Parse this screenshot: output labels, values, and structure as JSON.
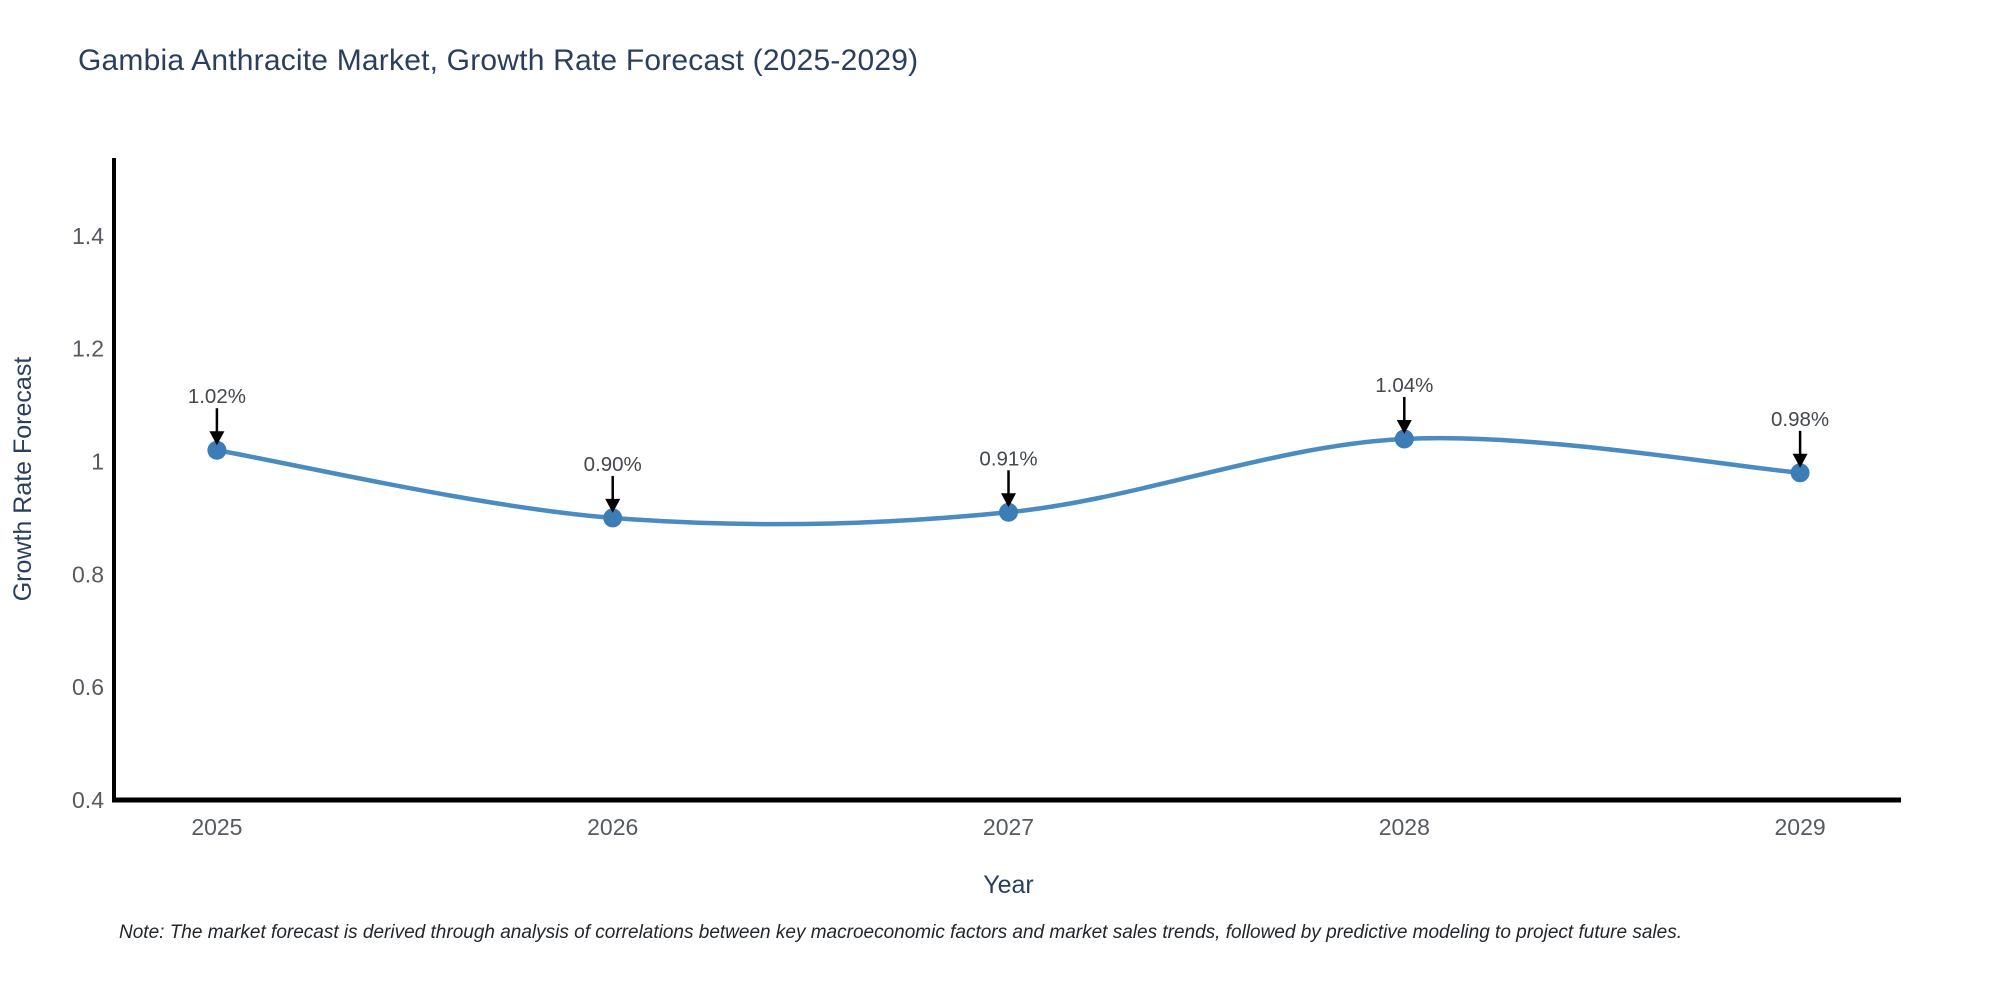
{
  "title": "Gambia Anthracite Market, Growth Rate Forecast (2025-2029)",
  "note": "Note: The market forecast is derived through analysis of correlations between key macroeconomic factors and market sales trends, followed by predictive modeling to project future sales.",
  "chart_data": {
    "type": "line",
    "title": "Gambia Anthracite Market, Growth Rate Forecast (2025-2029)",
    "xlabel": "Year",
    "ylabel": "Growth Rate Forecast",
    "x": [
      2025,
      2026,
      2027,
      2028,
      2029
    ],
    "series": [
      {
        "name": "Growth Rate Forecast",
        "values": [
          1.02,
          0.9,
          0.91,
          1.04,
          0.98
        ],
        "point_labels": [
          "1.02%",
          "0.90%",
          "0.91%",
          "1.04%",
          "0.98%"
        ]
      }
    ],
    "xtick_labels": [
      "2025",
      "2026",
      "2027",
      "2028",
      "2029"
    ],
    "yticks": [
      0.4,
      0.6,
      0.8,
      1.0,
      1.2,
      1.4
    ],
    "ytick_labels": [
      "0.4",
      "0.6",
      "0.8",
      "1",
      "1.2",
      "1.4"
    ],
    "xlim": [
      2024.74,
      2029.26
    ],
    "ylim": [
      0.4,
      1.538
    ],
    "grid": false,
    "legend_position": "none",
    "line_style": "spline",
    "colors": {
      "line": "#4a8bc2",
      "marker": "#3c7db8",
      "axis": "#000000",
      "tick_label": "#555a60",
      "axis_title": "#2a3f5f",
      "chart_title": "#2a3f5f",
      "annotation_text": "#43484d",
      "annotation_arrow": "#000000",
      "background": "#ffffff"
    }
  }
}
